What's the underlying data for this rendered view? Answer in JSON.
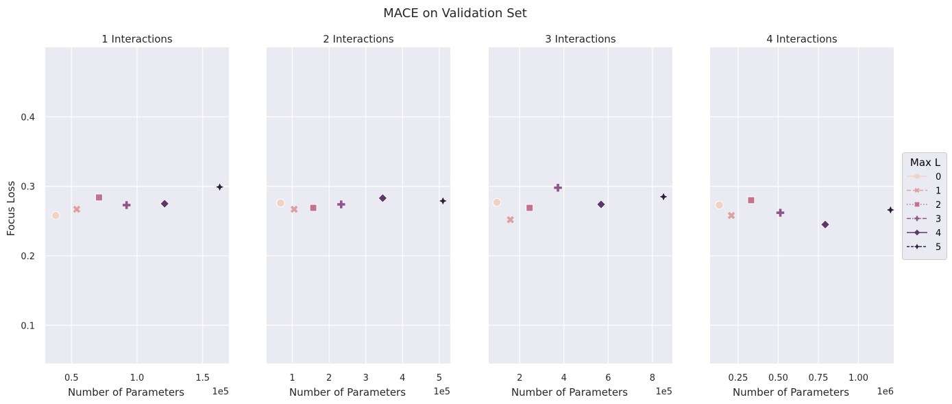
{
  "chart_data": {
    "type": "scatter",
    "title": "MACE on Validation Set",
    "ylabel": "Focus Loss",
    "ylim": [
      0.045,
      0.5
    ],
    "yticks": [
      0.1,
      0.2,
      0.3,
      0.4
    ],
    "ytick_labels": [
      "0.1",
      "0.2",
      "0.3",
      "0.4"
    ],
    "grid": true,
    "legend": {
      "title": "Max L",
      "placement": "right",
      "entries": [
        "0",
        "1",
        "2",
        "3",
        "4",
        "5"
      ],
      "colors": [
        "#efd1c6",
        "#de9fa0",
        "#c0728e",
        "#8f5488",
        "#5c3868",
        "#2e1e3b"
      ],
      "markers": [
        "circle",
        "x",
        "square",
        "plus",
        "diamond",
        "star4"
      ],
      "dashes": [
        "",
        "6,3",
        "1.5,2.5",
        "6,2,1.5,2",
        "",
        "4,2"
      ]
    },
    "panels": [
      {
        "title": "1 Interactions",
        "xlabel": "Number of Parameters",
        "offset_text": "1e5",
        "xlim": [
          0.3,
          1.7
        ],
        "xticks": [
          0.5,
          1.0,
          1.5
        ],
        "xtick_labels": [
          "0.5",
          "1.0",
          "1.5"
        ],
        "points": [
          {
            "max_l": "0",
            "x": 0.38,
            "y": 0.258
          },
          {
            "max_l": "1",
            "x": 0.54,
            "y": 0.267
          },
          {
            "max_l": "2",
            "x": 0.71,
            "y": 0.284
          },
          {
            "max_l": "3",
            "x": 0.92,
            "y": 0.273
          },
          {
            "max_l": "4",
            "x": 1.21,
            "y": 0.275
          },
          {
            "max_l": "5",
            "x": 1.63,
            "y": 0.299
          }
        ]
      },
      {
        "title": "2 Interactions",
        "xlabel": "Number of Parameters",
        "offset_text": "1e5",
        "xlim": [
          0.3,
          5.3
        ],
        "xticks": [
          1,
          2,
          3,
          4,
          5
        ],
        "xtick_labels": [
          "1",
          "2",
          "3",
          "4",
          "5"
        ],
        "points": [
          {
            "max_l": "0",
            "x": 0.68,
            "y": 0.276
          },
          {
            "max_l": "1",
            "x": 1.05,
            "y": 0.267
          },
          {
            "max_l": "2",
            "x": 1.57,
            "y": 0.269
          },
          {
            "max_l": "3",
            "x": 2.33,
            "y": 0.274
          },
          {
            "max_l": "4",
            "x": 3.46,
            "y": 0.283
          },
          {
            "max_l": "5",
            "x": 5.1,
            "y": 0.279
          }
        ]
      },
      {
        "title": "3 Interactions",
        "xlabel": "Number of Parameters",
        "offset_text": "1e5",
        "xlim": [
          0.6,
          8.9
        ],
        "xticks": [
          2,
          4,
          6,
          8
        ],
        "xtick_labels": [
          "2",
          "4",
          "6",
          "8"
        ],
        "points": [
          {
            "max_l": "0",
            "x": 0.97,
            "y": 0.277
          },
          {
            "max_l": "1",
            "x": 1.58,
            "y": 0.252
          },
          {
            "max_l": "2",
            "x": 2.45,
            "y": 0.269
          },
          {
            "max_l": "3",
            "x": 3.73,
            "y": 0.298
          },
          {
            "max_l": "4",
            "x": 5.68,
            "y": 0.274
          },
          {
            "max_l": "5",
            "x": 8.5,
            "y": 0.285
          }
        ]
      },
      {
        "title": "4 Interactions",
        "xlabel": "Number of Parameters",
        "offset_text": "1e6",
        "xlim": [
          0.075,
          1.22
        ],
        "xticks": [
          0.25,
          0.5,
          0.75,
          1.0
        ],
        "xtick_labels": [
          "0.25",
          "0.50",
          "0.75",
          "1.00"
        ],
        "points": [
          {
            "max_l": "0",
            "x": 0.133,
            "y": 0.273
          },
          {
            "max_l": "1",
            "x": 0.208,
            "y": 0.258
          },
          {
            "max_l": "2",
            "x": 0.331,
            "y": 0.28
          },
          {
            "max_l": "3",
            "x": 0.513,
            "y": 0.262
          },
          {
            "max_l": "4",
            "x": 0.793,
            "y": 0.245
          },
          {
            "max_l": "5",
            "x": 1.2,
            "y": 0.266
          }
        ]
      }
    ]
  }
}
